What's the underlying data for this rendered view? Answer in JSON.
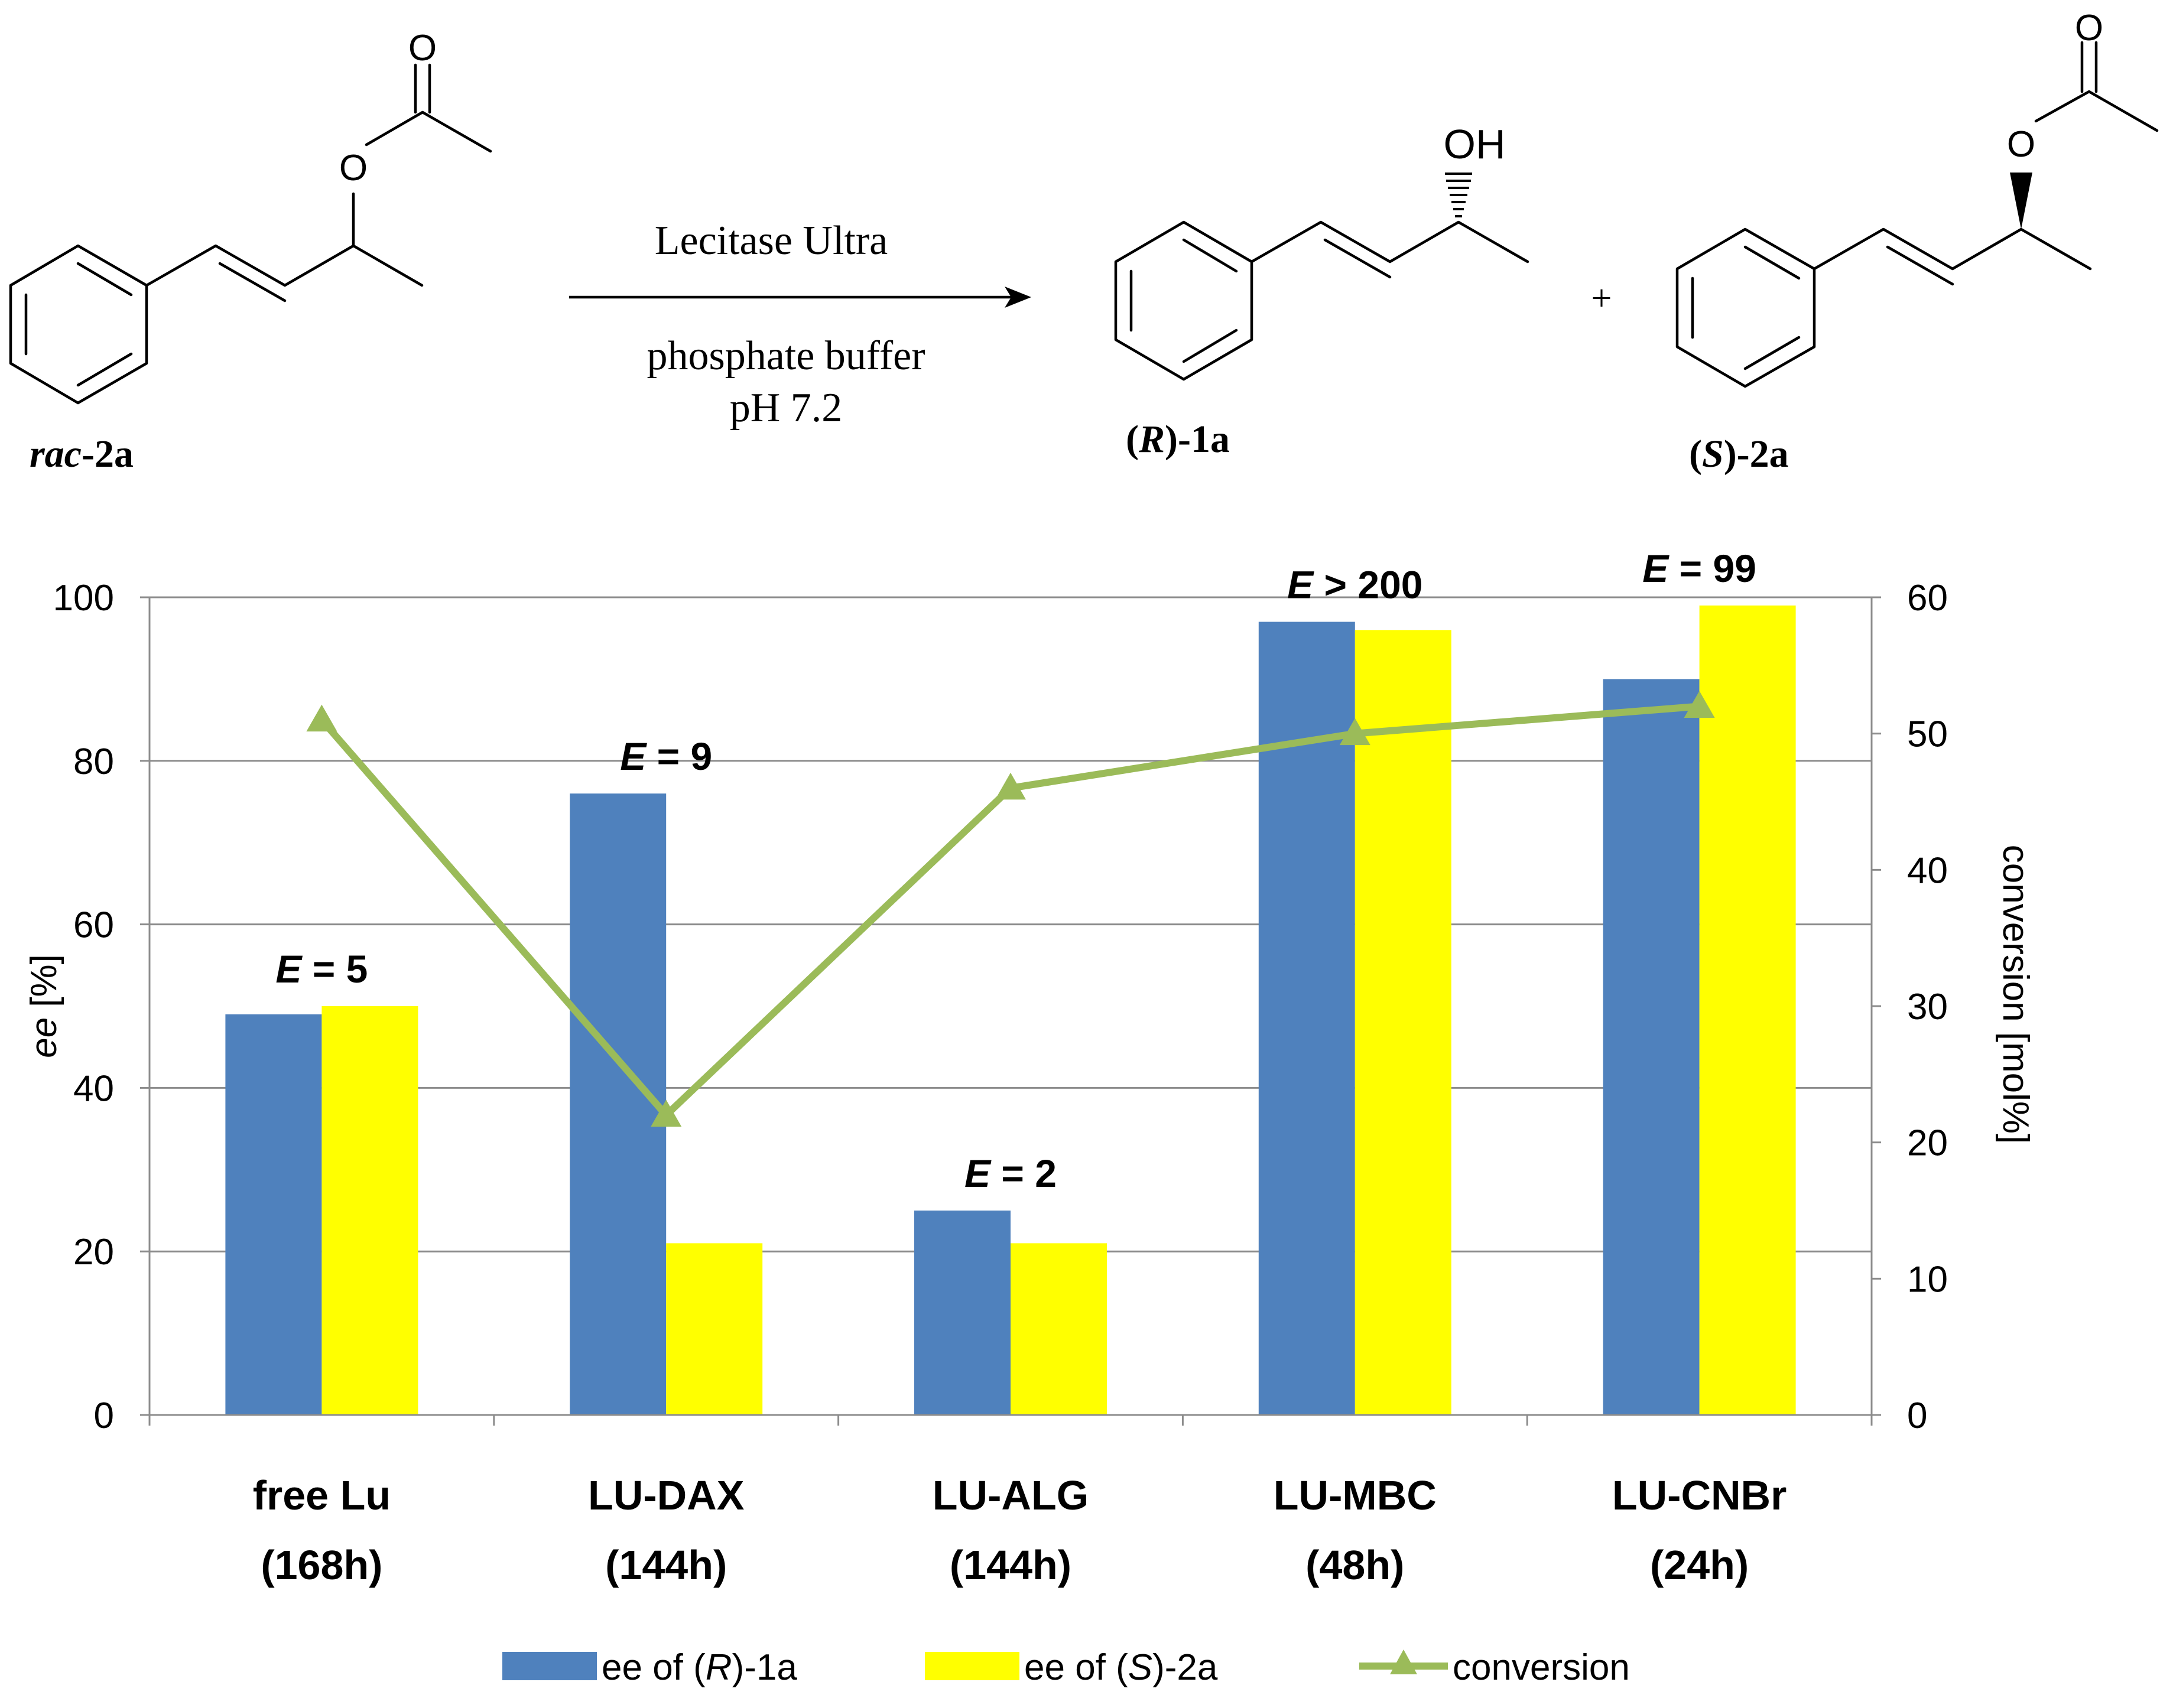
{
  "scheme": {
    "substrate_label_italic": "rac",
    "substrate_label_rest": "-2a",
    "reagent_top": "Lecitase Ultra",
    "reagent_bottom_1": "phosphate buffer",
    "reagent_bottom_2": "pH 7.2",
    "product1_open": "(",
    "product1_italic": "R",
    "product1_rest": ")-1a",
    "product2_open": "(",
    "product2_italic": "S",
    "product2_rest": ")-2a",
    "plus": "+",
    "atom_o_carbonyl": "O",
    "atom_o_ester": "O",
    "atom_oh": "OH"
  },
  "chart_data": {
    "type": "bar",
    "categories": [
      "free Lu (168h)",
      "LU-DAX (144h)",
      "LU-ALG (144h)",
      "LU-MBC (48h)",
      "LU-CNBr (24h)"
    ],
    "category_lines": [
      [
        "free Lu",
        "(168h)"
      ],
      [
        "LU-DAX",
        "(144h)"
      ],
      [
        "LU-ALG",
        "(144h)"
      ],
      [
        "LU-MBC",
        "(48h)"
      ],
      [
        "LU-CNBr",
        "(24h)"
      ]
    ],
    "series": [
      {
        "name": "ee of (R)-1a",
        "legend_parts": [
          "ee of (",
          "R",
          ")-1a"
        ],
        "color": "#4f81bd",
        "axis": "left",
        "kind": "bar",
        "values": [
          49,
          76,
          25,
          97,
          90
        ]
      },
      {
        "name": "ee of (S)-2a",
        "legend_parts": [
          "ee of (",
          "S",
          ")-2a"
        ],
        "color": "#ffff00",
        "axis": "left",
        "kind": "bar",
        "values": [
          50,
          21,
          21,
          96,
          99
        ]
      },
      {
        "name": "conversion",
        "legend_parts": [
          "conversion"
        ],
        "color": "#9bbb59",
        "axis": "right",
        "kind": "line-triangle",
        "values": [
          51,
          22,
          46,
          50,
          52
        ]
      }
    ],
    "annotations": [
      {
        "italic": "E",
        "rest": " = 5"
      },
      {
        "italic": "E",
        "rest": " = 9"
      },
      {
        "italic": "E",
        "rest": " = 2"
      },
      {
        "italic": "E",
        "rest": " > 200"
      },
      {
        "italic": "E",
        "rest": " = 99"
      }
    ],
    "annotation_values": [
      5,
      9,
      2,
      200,
      99
    ],
    "ylabel_left_italic": "ee",
    "ylabel_left_rest": " [%]",
    "ylabel_right": "conversion [mol%]",
    "ylim_left": [
      0,
      100
    ],
    "ylim_right": [
      0,
      60
    ],
    "yticks_left": [
      "0",
      "20",
      "40",
      "60",
      "80",
      "100"
    ],
    "yticks_right": [
      "0",
      "10",
      "20",
      "30",
      "40",
      "50",
      "60"
    ],
    "grid": true,
    "legend_position": "bottom"
  }
}
